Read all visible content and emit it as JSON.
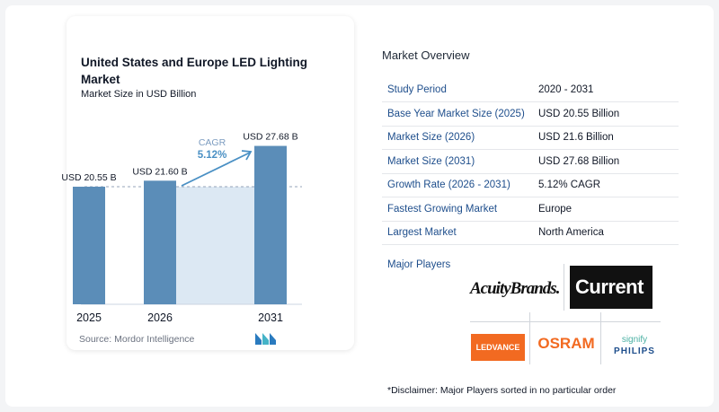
{
  "chart": {
    "title": "United States and Europe LED Lighting Market",
    "subtitle": "Market Size in USD Billion",
    "source": "Source:  Mordor Intelligence",
    "cagr_label": "CAGR",
    "cagr_value": "5.12%"
  },
  "chart_data": {
    "type": "bar",
    "title": "United States and Europe LED Lighting Market",
    "subtitle": "Market Size in USD Billion",
    "categories": [
      "2025",
      "2026",
      "2031"
    ],
    "values": [
      20.55,
      21.6,
      27.68
    ],
    "data_labels": [
      "USD 20.55 B",
      "USD 21.60 B",
      "USD 27.68 B"
    ],
    "annotation": "CAGR 5.12%",
    "xlabel": "",
    "ylabel": "",
    "grid": false,
    "colors": {
      "bar": "#5b8db8",
      "shade": "#dce8f3",
      "accent": "#4a90c4"
    }
  },
  "overview": {
    "title": "Market Overview",
    "rows": [
      {
        "key": "Study Period",
        "value": "2020 - 2031"
      },
      {
        "key": "Base Year Market Size (2025)",
        "value": "USD 20.55 Billion"
      },
      {
        "key": "Market Size (2026)",
        "value": "USD 21.6 Billion"
      },
      {
        "key": "Market Size (2031)",
        "value": "USD 27.68 Billion"
      },
      {
        "key": "Growth Rate (2026 - 2031)",
        "value": "5.12% CAGR"
      },
      {
        "key": "Fastest Growing Market",
        "value": "Europe"
      },
      {
        "key": "Largest Market",
        "value": "North America"
      }
    ],
    "players_label": "Major Players",
    "disclaimer": "*Disclaimer: Major Players sorted in no particular order"
  },
  "players": {
    "acuity": "AcuityBrands.",
    "current": "Current",
    "ledvance": "LEDVANCE",
    "osram": "OSRAM",
    "signify": "signify",
    "philips": "PHILIPS"
  }
}
